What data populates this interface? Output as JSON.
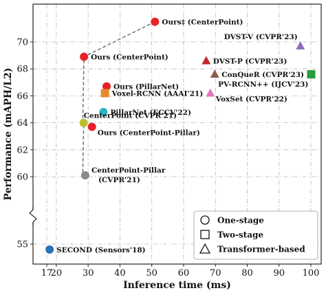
{
  "chart_data": {
    "type": "scatter",
    "xlabel": "Inference time (ms)",
    "ylabel": "Performance (mAPH/L2)",
    "xlim": [
      15,
      102
    ],
    "ylim": [
      53.5,
      72.5
    ],
    "x_ticks": [
      {
        "value": 17,
        "label": "17"
      },
      {
        "value": 20,
        "label": "20"
      },
      {
        "value": 30,
        "label": "30"
      },
      {
        "value": 40,
        "label": "40"
      },
      {
        "value": 50,
        "label": "50"
      },
      {
        "value": 60,
        "label": "60"
      },
      {
        "value": 70,
        "label": "70"
      },
      {
        "value": 80,
        "label": "80"
      },
      {
        "value": 90,
        "label": "90"
      },
      {
        "value": 100,
        "label": "100"
      }
    ],
    "y_ticks": [
      {
        "value": 55,
        "label": "55"
      },
      {
        "value": 60,
        "label": "60"
      },
      {
        "value": 62,
        "label": "62"
      },
      {
        "value": 64,
        "label": "64"
      },
      {
        "value": 66,
        "label": "66"
      },
      {
        "value": 68,
        "label": "68"
      },
      {
        "value": 70,
        "label": "70"
      }
    ],
    "y_axis_break": true,
    "grid": true,
    "legend": {
      "position": "bottom-right",
      "entries": [
        {
          "marker": "circle",
          "label": "One-stage"
        },
        {
          "marker": "square",
          "label": "Two-stage"
        },
        {
          "marker": "triangle",
          "label": "Transformer-based"
        }
      ]
    },
    "points": [
      {
        "name": "Ours‡ (CenterPoint)",
        "x": 51,
        "y": 71.5,
        "marker": "circle",
        "color": "#e8222a",
        "label_pos": "right"
      },
      {
        "name": "Ours (CenterPoint)",
        "x": 28.7,
        "y": 68.9,
        "marker": "circle",
        "color": "#e8222a",
        "label_pos": "right"
      },
      {
        "name": "Ours (PillarNet)",
        "x": 35.8,
        "y": 66.7,
        "marker": "circle",
        "color": "#e8222a",
        "label_pos": "right"
      },
      {
        "name": "Voxel-RCNN (AAAI'21)",
        "x": 35.3,
        "y": 66.2,
        "marker": "square",
        "color": "#e58a2c",
        "label_pos": "right"
      },
      {
        "name": "PillarNet (ECCV'22)",
        "x": 34.8,
        "y": 64.8,
        "marker": "circle",
        "color": "#2bb5c4",
        "label_pos": "right"
      },
      {
        "name": "CenterPoint (CVPR'21)",
        "x": 28.6,
        "y": 64.0,
        "marker": "circle",
        "color": "#bcbf2c",
        "label_pos": "above-right"
      },
      {
        "name": "Ours (CenterPoint-Pillar)",
        "x": 31.2,
        "y": 63.7,
        "marker": "circle",
        "color": "#e8222a",
        "label_pos": "below-right"
      },
      {
        "name": "CenterPoint-Pillar (CVPR'21)",
        "x": 29.1,
        "y": 60.1,
        "marker": "circle",
        "color": "#8a8a8a",
        "label_pos": "two-line"
      },
      {
        "name": "SECOND (Sensors'18)",
        "x": 17.9,
        "y": 54.6,
        "marker": "circle",
        "color": "#2b72b8",
        "label_pos": "right"
      },
      {
        "name": "DVST-V (CVPR'23)",
        "x": 96.7,
        "y": 69.7,
        "marker": "triangle",
        "color": "#8e6cc0",
        "label_pos": "above-left"
      },
      {
        "name": "DVST-P (CVPR'23)",
        "x": 67.1,
        "y": 68.6,
        "marker": "triangle",
        "color": "#c0282c",
        "label_pos": "right"
      },
      {
        "name": "ConQueR (CVPR'23)",
        "x": 69.8,
        "y": 67.6,
        "marker": "triangle",
        "color": "#8c5e4c",
        "label_pos": "right"
      },
      {
        "name": "PV-RCNN++ (IJCV'23)",
        "x": 100.1,
        "y": 67.6,
        "marker": "square",
        "color": "#2a9a3c",
        "label_pos": "below-left"
      },
      {
        "name": "VoxSet (CVPR'22)",
        "x": 68.4,
        "y": 66.2,
        "marker": "triangle",
        "color": "#e276be",
        "label_pos": "below-right"
      }
    ],
    "connector": {
      "style": "dashed",
      "color": "#777777",
      "path": [
        [
          29.1,
          60.1
        ],
        [
          28.3,
          60.1
        ],
        [
          28.6,
          64.0
        ],
        [
          28.3,
          64.0
        ],
        [
          28.7,
          68.9
        ],
        [
          51,
          71.5
        ]
      ]
    }
  }
}
